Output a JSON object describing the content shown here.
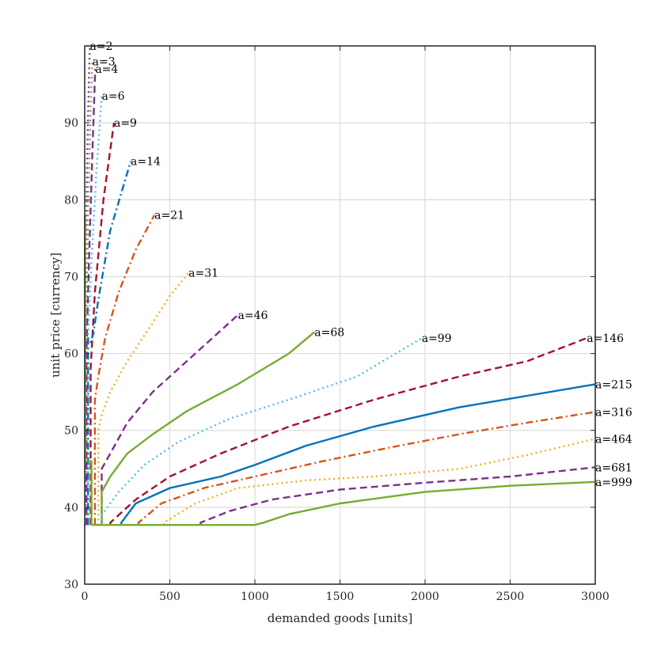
{
  "chart_data": {
    "type": "line",
    "title": "",
    "xlabel": "demanded goods [units]",
    "ylabel": "unit price [currency]",
    "xlim": [
      0,
      3000
    ],
    "ylim": [
      30,
      100
    ],
    "xticks": [
      0,
      500,
      1000,
      1500,
      2000,
      2500,
      3000
    ],
    "yticks": [
      30,
      40,
      50,
      60,
      70,
      80,
      90
    ],
    "grid": true,
    "legend": "none",
    "floor_price": 37.7,
    "series": [
      {
        "name": "a=2",
        "color": "#7E2F8E",
        "dash": "dot",
        "points": [
          [
            5,
            70
          ],
          [
            15,
            86
          ],
          [
            25,
            96
          ],
          [
            30,
            100
          ]
        ],
        "label_at": [
          30,
          100
        ]
      },
      {
        "name": "a=3",
        "color": "#77AC30",
        "dash": "dot",
        "points": [
          [
            8,
            62
          ],
          [
            20,
            78
          ],
          [
            35,
            92
          ],
          [
            45,
            98
          ]
        ],
        "label_at": [
          45,
          98
        ]
      },
      {
        "name": "a=4",
        "color": "#7E2F8E",
        "dash": "dashed",
        "points": [
          [
            10,
            60
          ],
          [
            25,
            72
          ],
          [
            45,
            86
          ],
          [
            62,
            97
          ]
        ],
        "label_at": [
          62,
          97
        ]
      },
      {
        "name": "a=6",
        "color": "#4DBEEE",
        "dash": "dot",
        "points": [
          [
            20,
            62
          ],
          [
            40,
            72
          ],
          [
            70,
            84
          ],
          [
            100,
            93.5
          ]
        ],
        "label_at": [
          100,
          93.5
        ]
      },
      {
        "name": "a=9",
        "color": "#A2142F",
        "dash": "dashed",
        "points": [
          [
            35,
            58
          ],
          [
            60,
            68
          ],
          [
            110,
            80
          ],
          [
            172,
            90
          ]
        ],
        "label_at": [
          172,
          90
        ]
      },
      {
        "name": "a=14",
        "color": "#0072BD",
        "dash": "dashdot",
        "points": [
          [
            20,
            62
          ],
          [
            35,
            61.5
          ],
          [
            50,
            62.5
          ],
          [
            80,
            67
          ],
          [
            150,
            76
          ],
          [
            270,
            85
          ]
        ],
        "label_at": [
          270,
          85
        ]
      },
      {
        "name": "a=21",
        "color": "#D95319",
        "dash": "dashdot",
        "points": [
          [
            60,
            54
          ],
          [
            80,
            57
          ],
          [
            120,
            62
          ],
          [
            200,
            68
          ],
          [
            300,
            73.5
          ],
          [
            410,
            78
          ]
        ],
        "label_at": [
          410,
          78
        ]
      },
      {
        "name": "a=31",
        "color": "#EDB120",
        "dash": "dot",
        "points": [
          [
            80,
            50
          ],
          [
            100,
            52
          ],
          [
            150,
            55
          ],
          [
            250,
            59
          ],
          [
            400,
            64
          ],
          [
            500,
            67.5
          ],
          [
            610,
            70.5
          ]
        ],
        "label_at": [
          610,
          70.5
        ]
      },
      {
        "name": "a=46",
        "color": "#7E2F8E",
        "dash": "dashed",
        "points": [
          [
            100,
            45
          ],
          [
            150,
            47
          ],
          [
            250,
            51
          ],
          [
            400,
            55
          ],
          [
            550,
            58
          ],
          [
            700,
            61
          ],
          [
            900,
            65
          ]
        ],
        "label_at": [
          900,
          65
        ]
      },
      {
        "name": "a=68",
        "color": "#77AC30",
        "dash": "solid",
        "points": [
          [
            100,
            42
          ],
          [
            150,
            44
          ],
          [
            250,
            47
          ],
          [
            400,
            49.5
          ],
          [
            600,
            52.5
          ],
          [
            900,
            56
          ],
          [
            1200,
            60
          ],
          [
            1350,
            62.8
          ]
        ],
        "label_at": [
          1350,
          62.8
        ]
      },
      {
        "name": "a=99",
        "color": "#4DBEEE",
        "dash": "dot",
        "points": [
          [
            100,
            39
          ],
          [
            200,
            42
          ],
          [
            350,
            45.5
          ],
          [
            550,
            48.5
          ],
          [
            850,
            51.5
          ],
          [
            1200,
            54
          ],
          [
            1600,
            57
          ],
          [
            1980,
            62
          ]
        ],
        "label_at": [
          1980,
          62
        ]
      },
      {
        "name": "a=146",
        "color": "#A2142F",
        "dash": "dashed",
        "points": [
          [
            150,
            38
          ],
          [
            300,
            41
          ],
          [
            500,
            44
          ],
          [
            800,
            47
          ],
          [
            1200,
            50.5
          ],
          [
            1700,
            54
          ],
          [
            2200,
            57
          ],
          [
            2600,
            59
          ],
          [
            2950,
            62
          ]
        ],
        "label_at": [
          2950,
          62
        ]
      },
      {
        "name": "a=215",
        "color": "#0072BD",
        "dash": "solid",
        "points": [
          [
            215,
            38
          ],
          [
            300,
            40.5
          ],
          [
            500,
            42.5
          ],
          [
            800,
            44
          ],
          [
            1000,
            45.5
          ],
          [
            1300,
            48
          ],
          [
            1700,
            50.5
          ],
          [
            2200,
            53
          ],
          [
            2600,
            54.5
          ],
          [
            3000,
            56
          ]
        ],
        "label_at": [
          3000,
          56
        ]
      },
      {
        "name": "a=316",
        "color": "#D95319",
        "dash": "dashdot",
        "points": [
          [
            316,
            38
          ],
          [
            450,
            40.5
          ],
          [
            700,
            42.5
          ],
          [
            1000,
            44
          ],
          [
            1400,
            46
          ],
          [
            1800,
            47.8
          ],
          [
            2200,
            49.5
          ],
          [
            2600,
            51
          ],
          [
            3000,
            52.4
          ]
        ],
        "label_at": [
          3000,
          52.4
        ]
      },
      {
        "name": "a=464",
        "color": "#EDB120",
        "dash": "dot",
        "points": [
          [
            464,
            38
          ],
          [
            650,
            40.5
          ],
          [
            900,
            42.5
          ],
          [
            1300,
            43.5
          ],
          [
            1700,
            44
          ],
          [
            2200,
            45
          ],
          [
            2600,
            46.8
          ],
          [
            3000,
            48.9
          ]
        ],
        "label_at": [
          3000,
          48.9
        ]
      },
      {
        "name": "a=681",
        "color": "#7E2F8E",
        "dash": "dashed",
        "points": [
          [
            681,
            38
          ],
          [
            850,
            39.5
          ],
          [
            1100,
            41
          ],
          [
            1500,
            42.3
          ],
          [
            2000,
            43.2
          ],
          [
            2500,
            44
          ],
          [
            3000,
            45.2
          ]
        ],
        "label_at": [
          3000,
          45.2
        ]
      },
      {
        "name": "a=999",
        "color": "#77AC30",
        "dash": "solid",
        "points": [
          [
            999,
            37.7
          ],
          [
            1050,
            38
          ],
          [
            1200,
            39.1
          ],
          [
            1500,
            40.5
          ],
          [
            2000,
            42
          ],
          [
            2500,
            42.8
          ],
          [
            3000,
            43.3
          ]
        ],
        "label_at": [
          3000,
          43.3
        ]
      }
    ]
  }
}
